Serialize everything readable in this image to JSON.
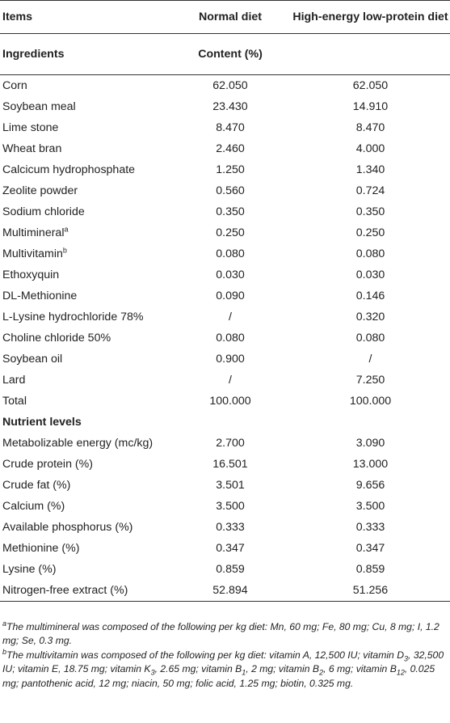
{
  "header": {
    "items": "Items",
    "normal": "Normal diet",
    "help": "High-energy low-protein diet"
  },
  "subheader": {
    "ingredients": "Ingredients",
    "content": "Content (%)"
  },
  "ingredients": [
    {
      "name": "Corn",
      "normal": "62.050",
      "help": "62.050"
    },
    {
      "name": "Soybean meal",
      "normal": "23.430",
      "help": "14.910"
    },
    {
      "name": "Lime stone",
      "normal": "8.470",
      "help": "8.470"
    },
    {
      "name": "Wheat bran",
      "normal": "2.460",
      "help": "4.000"
    },
    {
      "name": "Calcicum hydrophosphate",
      "normal": "1.250",
      "help": "1.340"
    },
    {
      "name": "Zeolite powder",
      "normal": "0.560",
      "help": "0.724"
    },
    {
      "name": "Sodium chloride",
      "normal": "0.350",
      "help": "0.350"
    },
    {
      "name": "Multimineral",
      "sup": "a",
      "normal": "0.250",
      "help": "0.250"
    },
    {
      "name": "Multivitamin",
      "sup": "b",
      "normal": "0.080",
      "help": "0.080"
    },
    {
      "name": "Ethoxyquin",
      "normal": "0.030",
      "help": "0.030"
    },
    {
      "name": "DL-Methionine",
      "normal": "0.090",
      "help": "0.146"
    },
    {
      "name": "L-Lysine hydrochloride 78%",
      "normal": "/",
      "help": "0.320"
    },
    {
      "name": "Choline chloride 50%",
      "normal": "0.080",
      "help": "0.080"
    },
    {
      "name": "Soybean oil",
      "normal": "0.900",
      "help": "/"
    },
    {
      "name": "Lard",
      "normal": "/",
      "help": "7.250"
    },
    {
      "name": "Total",
      "normal": "100.000",
      "help": "100.000"
    }
  ],
  "nutrient_title": "Nutrient levels",
  "nutrients": [
    {
      "name": "Metabolizable energy (mc/kg)",
      "normal": "2.700",
      "help": "3.090"
    },
    {
      "name": "Crude protein (%)",
      "normal": "16.501",
      "help": "13.000"
    },
    {
      "name": "Crude fat (%)",
      "normal": "3.501",
      "help": "9.656"
    },
    {
      "name": "Calcium (%)",
      "normal": "3.500",
      "help": "3.500"
    },
    {
      "name": "Available phosphorus (%)",
      "normal": "0.333",
      "help": "0.333"
    },
    {
      "name": "Methionine (%)",
      "normal": "0.347",
      "help": "0.347"
    },
    {
      "name": "Lysine (%)",
      "normal": "0.859",
      "help": "0.859"
    },
    {
      "name": "Nitrogen-free extract (%)",
      "normal": "52.894",
      "help": "51.256"
    }
  ],
  "footnotes": {
    "a_mark": "a",
    "a_text": "The multimineral was composed of the following per kg diet: Mn, 60 mg; Fe, 80 mg; Cu, 8 mg; I, 1.2 mg; Se, 0.3 mg.",
    "b_mark": "b",
    "b_parts": [
      "The multivitamin was composed of the following per kg diet: vitamin A, 12,500 IU; vitamin D",
      "3",
      ", 32,500 IU; vitamin E, 18.75 mg; vitamin K",
      "3",
      ", 2.65 mg; vitamin B",
      "1",
      ", 2 mg; vitamin B",
      "2",
      ", 6 mg; vitamin B",
      "12",
      ", 0.025 mg; pantothenic acid, 12 mg; niacin, 50 mg; folic acid, 1.25 mg; biotin, 0.325 mg."
    ]
  }
}
